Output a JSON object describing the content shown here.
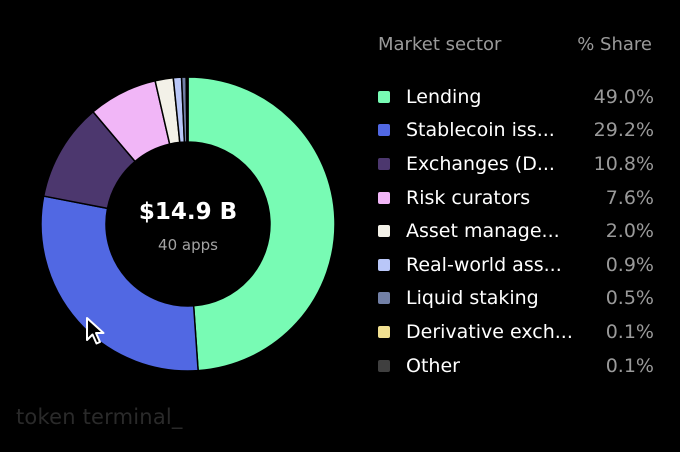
{
  "chart_data": {
    "type": "pie",
    "variant": "donut",
    "center": {
      "total": "$14.9 B",
      "subtitle": "40 apps"
    },
    "legend_header": {
      "sector": "Market sector",
      "share": "% Share"
    },
    "slices": [
      {
        "label": "Lending",
        "value": 49.0,
        "display": "49.0%",
        "color": "#78fbb4"
      },
      {
        "label": "Stablecoin iss...",
        "value": 29.2,
        "display": "29.2%",
        "color": "#5168e3"
      },
      {
        "label": "Exchanges (D...",
        "value": 10.8,
        "display": "10.8%",
        "color": "#4c376e"
      },
      {
        "label": "Risk curators",
        "value": 7.6,
        "display": "7.6%",
        "color": "#f1b6f7"
      },
      {
        "label": "Asset manage...",
        "value": 2.0,
        "display": "2.0%",
        "color": "#f3f1e8"
      },
      {
        "label": "Real-world ass...",
        "value": 0.9,
        "display": "0.9%",
        "color": "#b9c7f8"
      },
      {
        "label": "Liquid staking",
        "value": 0.5,
        "display": "0.5%",
        "color": "#7280a6"
      },
      {
        "label": "Derivative exch...",
        "value": 0.1,
        "display": "0.1%",
        "color": "#f1e091"
      },
      {
        "label": "Other",
        "value": 0.1,
        "display": "0.1%",
        "color": "#3f3f3f"
      }
    ]
  },
  "brand": {
    "text": "token terminal_"
  },
  "colors": {
    "background": "#000000",
    "muted_text": "#9a9a9a",
    "slice_border": "#000000"
  },
  "cursor": {
    "icon": "arrow-cursor-icon"
  }
}
